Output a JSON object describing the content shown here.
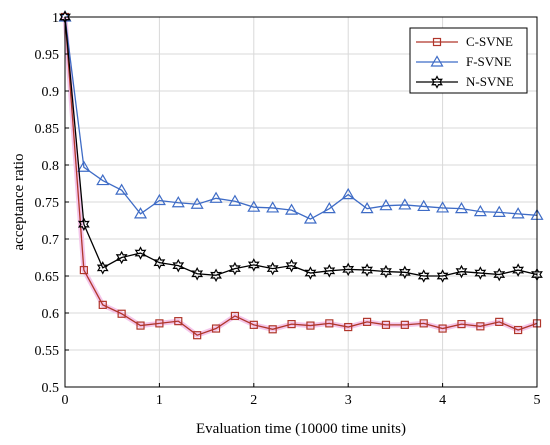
{
  "chart_data": {
    "type": "line",
    "title": "",
    "xlabel": "Evaluation time (10000 time units)",
    "ylabel": "acceptance ratio",
    "xlim": [
      0,
      5
    ],
    "ylim": [
      0.5,
      1
    ],
    "xticks": [
      "0",
      "1",
      "2",
      "3",
      "4",
      "5"
    ],
    "yticks": [
      "0.5",
      "0.55",
      "0.6",
      "0.65",
      "0.7",
      "0.75",
      "0.8",
      "0.85",
      "0.9",
      "0.95",
      "1"
    ],
    "grid": true,
    "legend_position": "top-right",
    "x": [
      0,
      0.2,
      0.4,
      0.6,
      0.8,
      1.0,
      1.2,
      1.4,
      1.6,
      1.8,
      2.0,
      2.2,
      2.4,
      2.6,
      2.8,
      3.0,
      3.2,
      3.4,
      3.6,
      3.8,
      4.0,
      4.2,
      4.4,
      4.6,
      4.8,
      5.0
    ],
    "series": [
      {
        "name": "C-SVNE",
        "color": "#b0362b",
        "marker": "square",
        "values": [
          1.0,
          0.658,
          0.611,
          0.599,
          0.583,
          0.586,
          0.589,
          0.57,
          0.579,
          0.596,
          0.584,
          0.578,
          0.585,
          0.583,
          0.586,
          0.581,
          0.588,
          0.584,
          0.584,
          0.586,
          0.579,
          0.585,
          0.582,
          0.588,
          0.577,
          0.586
        ]
      },
      {
        "name": "F-SVNE",
        "color": "#3f6cc6",
        "marker": "triangle",
        "values": [
          1.0,
          0.797,
          0.779,
          0.766,
          0.734,
          0.752,
          0.749,
          0.747,
          0.755,
          0.751,
          0.743,
          0.742,
          0.739,
          0.727,
          0.741,
          0.76,
          0.741,
          0.745,
          0.746,
          0.744,
          0.742,
          0.741,
          0.737,
          0.736,
          0.734,
          0.732
        ]
      },
      {
        "name": "N-SVNE",
        "color": "#000000",
        "marker": "hexagram",
        "values": [
          1.0,
          0.72,
          0.661,
          0.675,
          0.681,
          0.668,
          0.664,
          0.653,
          0.651,
          0.66,
          0.665,
          0.66,
          0.664,
          0.654,
          0.657,
          0.659,
          0.658,
          0.656,
          0.655,
          0.65,
          0.65,
          0.656,
          0.654,
          0.652,
          0.658,
          0.652
        ]
      }
    ]
  }
}
